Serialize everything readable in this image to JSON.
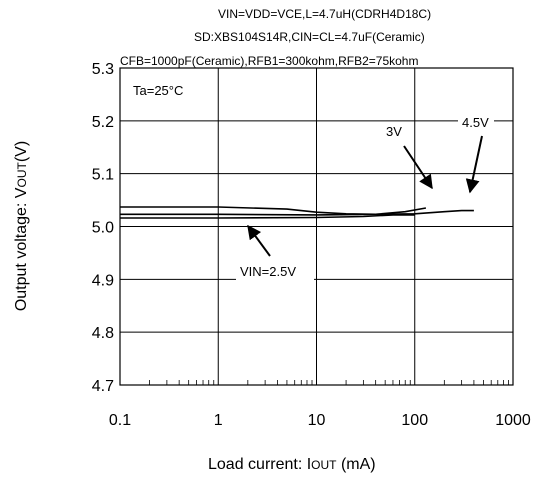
{
  "chart_data": {
    "type": "line",
    "header_lines": [
      "VIN=VDD=VCE,L=4.7uH(CDRH4D18C)",
      "SD:XBS104S14R,CIN=CL=4.7uF(Ceramic)",
      "CFB=1000pF(Ceramic),RFB1=300kohm,RFB2=75kohm"
    ],
    "condition_label": "Ta=25°C",
    "xlabel": "Load current: I",
    "xlabel_sub": "OUT",
    "xlabel_unit": " (mA)",
    "ylabel": "Output voltage: V",
    "ylabel_sub": "OUT",
    "ylabel_unit": "(V)",
    "x_scale": "log",
    "xlim": [
      0.1,
      1000
    ],
    "ylim": [
      4.7,
      5.3
    ],
    "x_tick_labels": [
      "0.1",
      "1",
      "10",
      "100",
      "1000"
    ],
    "y_tick_labels": [
      "5.3",
      "5.2",
      "5.1",
      "5.0",
      "4.9",
      "4.8",
      "4.7"
    ],
    "grid": true,
    "series": [
      {
        "name": "VIN=2.5V",
        "points": [
          [
            0.1,
            5.016
          ],
          [
            1,
            5.016
          ],
          [
            10,
            5.017
          ],
          [
            30,
            5.019
          ],
          [
            60,
            5.022
          ],
          [
            100,
            5.022
          ]
        ]
      },
      {
        "name": "3V",
        "points": [
          [
            0.1,
            5.037
          ],
          [
            1,
            5.037
          ],
          [
            5,
            5.033
          ],
          [
            10,
            5.027
          ],
          [
            20,
            5.024
          ],
          [
            40,
            5.023
          ],
          [
            80,
            5.028
          ],
          [
            130,
            5.035
          ]
        ]
      },
      {
        "name": "4.5V",
        "points": [
          [
            0.1,
            5.023
          ],
          [
            1,
            5.023
          ],
          [
            10,
            5.022
          ],
          [
            40,
            5.023
          ],
          [
            100,
            5.024
          ],
          [
            200,
            5.028
          ],
          [
            300,
            5.03
          ],
          [
            400,
            5.03
          ]
        ]
      }
    ],
    "annotations": [
      {
        "text": "VIN=2.5V",
        "series": "VIN=2.5V"
      },
      {
        "text": "3V",
        "series": "3V"
      },
      {
        "text": "4.5V",
        "series": "4.5V"
      }
    ]
  }
}
